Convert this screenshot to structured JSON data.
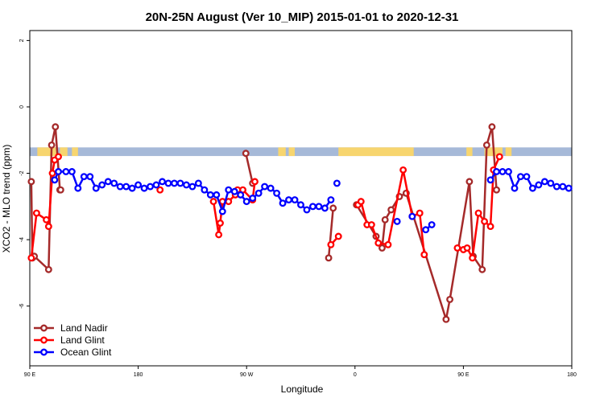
{
  "chart_data": {
    "type": "line",
    "title": "20N-25N August (Ver 10_MIP)   2015-01-01 to 2020-12-31",
    "xlabel": "Longitude",
    "ylabel": "XCO2 - MLO trend (ppm)",
    "xlim": [
      90,
      450
    ],
    "ylim": [
      -7.8,
      2.3
    ],
    "x_ticks": [
      {
        "value": 90,
        "label": "90 E"
      },
      {
        "value": 162,
        "label": "180"
      },
      {
        "value": 234,
        "label": "90 W"
      },
      {
        "value": 306,
        "label": "0"
      },
      {
        "value": 378,
        "label": "90 E"
      },
      {
        "value": 450,
        "label": "180"
      }
    ],
    "y_ticks": [
      {
        "value": 2,
        "label": "2"
      },
      {
        "value": 0,
        "label": "0"
      },
      {
        "value": -2,
        "label": "-2"
      },
      {
        "value": -4,
        "label": "-4"
      },
      {
        "value": -6,
        "label": "-6"
      }
    ],
    "legend": {
      "position": "bottom-left"
    },
    "map_band": {
      "y_top": -1.22,
      "y_bottom": -1.48,
      "ocean_color": "#a6b9d8",
      "land_color": "#f7d56f"
    },
    "series": [
      {
        "name": "Land Nadir",
        "color": "#a52a2a",
        "points": [
          [
            91,
            -2.25
          ],
          [
            91.7,
            -4.55
          ],
          [
            93,
            -4.5
          ],
          [
            102.5,
            -4.9
          ],
          [
            104.5,
            -1.15
          ],
          [
            107,
            -0.6
          ],
          [
            110,
            -2.5
          ],
          [
            110.5,
            -2.5
          ],
          [
            233.5,
            -1.4
          ],
          [
            238,
            -2.3
          ],
          [
            288.5,
            -4.55
          ],
          [
            291.5,
            -3.05
          ],
          [
            307,
            -2.95
          ],
          [
            320,
            -3.9
          ],
          [
            324,
            -4.25
          ],
          [
            326,
            -3.4
          ],
          [
            330,
            -3.1
          ],
          [
            335.5,
            -2.7
          ],
          [
            340,
            -2.6
          ],
          [
            366.5,
            -6.4
          ],
          [
            369,
            -5.8
          ],
          [
            382,
            -2.25
          ],
          [
            384.5,
            -4.5
          ],
          [
            390.5,
            -4.9
          ],
          [
            393.5,
            -1.15
          ],
          [
            397,
            -0.6
          ],
          [
            400,
            -2.5
          ]
        ],
        "gaps_after": [
          7,
          9,
          11
        ]
      },
      {
        "name": "Land Glint",
        "color": "#ff0000",
        "points": [
          [
            91,
            -4.55
          ],
          [
            94.5,
            -3.2
          ],
          [
            101,
            -3.4
          ],
          [
            102.5,
            -3.6
          ],
          [
            105,
            -2.0
          ],
          [
            106.5,
            -1.6
          ],
          [
            109,
            -1.5
          ],
          [
            176.5,
            -2.5
          ],
          [
            212,
            -2.85
          ],
          [
            215.5,
            -3.85
          ],
          [
            216.5,
            -3.5
          ],
          [
            218,
            -2.85
          ],
          [
            222,
            -2.85
          ],
          [
            226.5,
            -2.65
          ],
          [
            228,
            -2.5
          ],
          [
            231.5,
            -2.5
          ],
          [
            238,
            -2.8
          ],
          [
            239.5,
            -2.25
          ],
          [
            290,
            -4.15
          ],
          [
            295,
            -3.9
          ],
          [
            308,
            -2.95
          ],
          [
            310,
            -2.85
          ],
          [
            314,
            -3.55
          ],
          [
            317,
            -3.55
          ],
          [
            321.5,
            -4.1
          ],
          [
            328,
            -4.15
          ],
          [
            338,
            -1.9
          ],
          [
            344,
            -3.3
          ],
          [
            349,
            -3.2
          ],
          [
            352,
            -4.45
          ],
          [
            374,
            -4.25
          ],
          [
            378,
            -4.3
          ],
          [
            380.5,
            -4.25
          ],
          [
            384,
            -4.55
          ],
          [
            388,
            -3.2
          ],
          [
            392,
            -3.45
          ],
          [
            396,
            -3.6
          ],
          [
            398,
            -1.9
          ],
          [
            402,
            -1.5
          ]
        ],
        "gaps_after": [
          6,
          7,
          17,
          19,
          29,
          30
        ]
      },
      {
        "name": "Ocean Glint",
        "color": "#0000ff",
        "points": [
          [
            106.5,
            -2.2
          ],
          [
            109,
            -1.95
          ],
          [
            114,
            -1.95
          ],
          [
            118,
            -1.95
          ],
          [
            122,
            -2.45
          ],
          [
            126,
            -2.1
          ],
          [
            130,
            -2.1
          ],
          [
            134,
            -2.45
          ],
          [
            138,
            -2.35
          ],
          [
            142,
            -2.25
          ],
          [
            146,
            -2.3
          ],
          [
            150,
            -2.4
          ],
          [
            154,
            -2.4
          ],
          [
            158,
            -2.45
          ],
          [
            162,
            -2.35
          ],
          [
            166,
            -2.45
          ],
          [
            170,
            -2.4
          ],
          [
            174,
            -2.35
          ],
          [
            178,
            -2.25
          ],
          [
            182,
            -2.3
          ],
          [
            186,
            -2.3
          ],
          [
            190,
            -2.3
          ],
          [
            194,
            -2.35
          ],
          [
            198,
            -2.4
          ],
          [
            202,
            -2.3
          ],
          [
            206,
            -2.5
          ],
          [
            210,
            -2.65
          ],
          [
            214,
            -2.65
          ],
          [
            218,
            -3.15
          ],
          [
            222,
            -2.5
          ],
          [
            226,
            -2.55
          ],
          [
            230,
            -2.65
          ],
          [
            234,
            -2.85
          ],
          [
            238,
            -2.75
          ],
          [
            242,
            -2.6
          ],
          [
            246,
            -2.4
          ],
          [
            250,
            -2.45
          ],
          [
            254,
            -2.6
          ],
          [
            258,
            -2.9
          ],
          [
            262,
            -2.8
          ],
          [
            266,
            -2.8
          ],
          [
            270,
            -2.95
          ],
          [
            274,
            -3.1
          ],
          [
            278,
            -3.0
          ],
          [
            282,
            -3.0
          ],
          [
            286,
            -3.05
          ],
          [
            290,
            -2.8
          ],
          [
            294,
            -2.3
          ],
          [
            334,
            -3.45
          ],
          [
            344,
            -3.3
          ],
          [
            353,
            -3.7
          ],
          [
            357,
            -3.55
          ],
          [
            396,
            -2.2
          ],
          [
            400,
            -1.95
          ],
          [
            404,
            -1.95
          ],
          [
            408,
            -1.95
          ],
          [
            412,
            -2.45
          ],
          [
            416,
            -2.1
          ],
          [
            420,
            -2.1
          ],
          [
            424,
            -2.45
          ],
          [
            428,
            -2.35
          ],
          [
            432,
            -2.25
          ],
          [
            436,
            -2.3
          ],
          [
            440,
            -2.4
          ],
          [
            444,
            -2.4
          ],
          [
            448,
            -2.45
          ]
        ],
        "gaps_after": [
          46,
          47,
          48,
          49,
          51
        ]
      }
    ]
  }
}
